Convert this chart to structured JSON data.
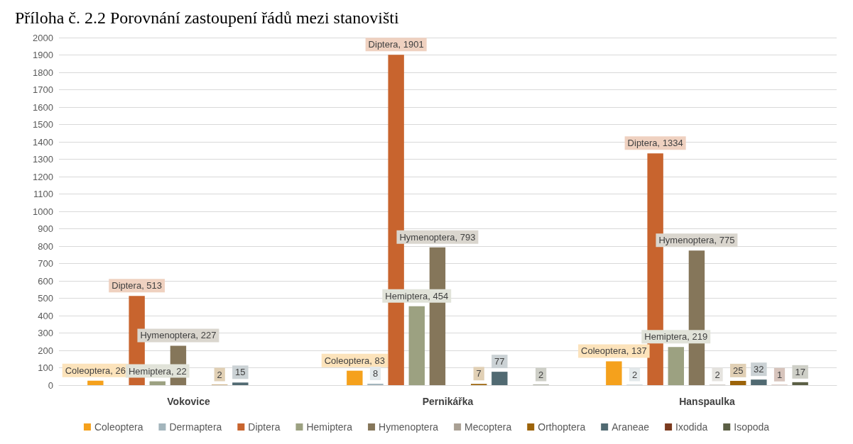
{
  "chart_data": {
    "type": "bar",
    "title": "Příloha č. 2.2 Porovnání zastoupení řádů mezi stanovišti",
    "categories": [
      "Vokovice",
      "Pernikářka",
      "Hanspaulka"
    ],
    "series": [
      {
        "name": "Coleoptera",
        "color": "#f5a11c",
        "values": [
          26,
          83,
          137
        ],
        "value_labels": [
          "Coleoptera, 26",
          "Coleoptera, 83",
          "Coleoptera, 137"
        ]
      },
      {
        "name": "Dermaptera",
        "color": "#a3b5bc",
        "values": [
          null,
          8,
          2
        ],
        "value_labels": [
          null,
          "8",
          "2"
        ]
      },
      {
        "name": "Diptera",
        "color": "#c8642e",
        "values": [
          513,
          1901,
          1334
        ],
        "value_labels": [
          "Diptera, 513",
          "Diptera, 1901",
          "Diptera, 1334"
        ]
      },
      {
        "name": "Hemiptera",
        "color": "#9ca181",
        "values": [
          22,
          454,
          219
        ],
        "value_labels": [
          "Hemiptera, 22",
          "Hemiptera, 454",
          "Hemiptera, 219"
        ]
      },
      {
        "name": "Hymenoptera",
        "color": "#85765a",
        "values": [
          227,
          793,
          775
        ],
        "value_labels": [
          "Hymenoptera, 227",
          "Hymenoptera, 793",
          "Hymenoptera, 775"
        ]
      },
      {
        "name": "Mecoptera",
        "color": "#a9a094",
        "values": [
          null,
          null,
          2
        ],
        "value_labels": [
          null,
          null,
          "2"
        ]
      },
      {
        "name": "Orthoptera",
        "color": "#9c6309",
        "values": [
          2,
          7,
          25
        ],
        "value_labels": [
          "2",
          "7",
          "25"
        ]
      },
      {
        "name": "Araneae",
        "color": "#516a72",
        "values": [
          15,
          77,
          32
        ],
        "value_labels": [
          "15",
          "77",
          "32"
        ]
      },
      {
        "name": "Ixodida",
        "color": "#7b3a1e",
        "values": [
          null,
          null,
          1
        ],
        "value_labels": [
          null,
          null,
          "1"
        ]
      },
      {
        "name": "Isopoda",
        "color": "#5b5f45",
        "values": [
          null,
          2,
          17
        ],
        "value_labels": [
          null,
          "2",
          "17"
        ]
      }
    ],
    "ylim": [
      0,
      2000
    ],
    "yticks": [
      0,
      100,
      200,
      300,
      400,
      500,
      600,
      700,
      800,
      900,
      1000,
      1100,
      1200,
      1300,
      1400,
      1500,
      1600,
      1700,
      1800,
      1900,
      2000
    ],
    "grid": "y",
    "legend": "bottom"
  }
}
